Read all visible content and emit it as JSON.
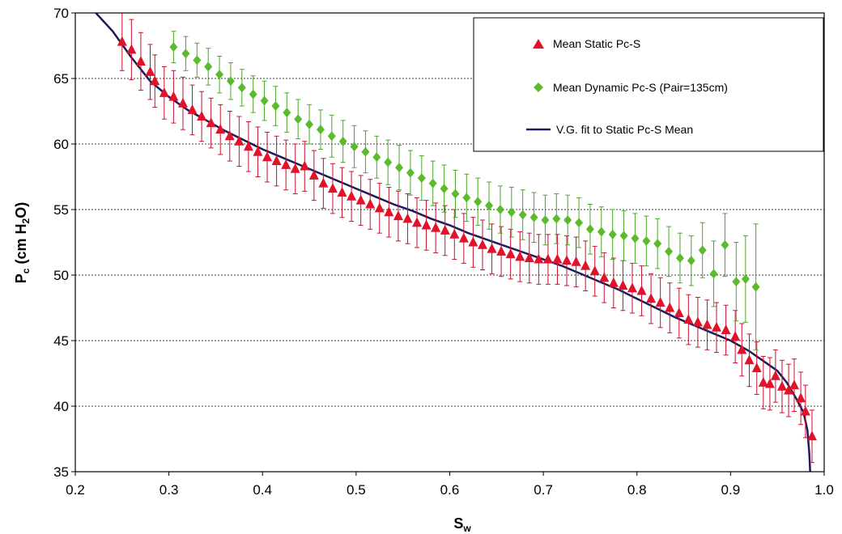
{
  "chart_data": {
    "type": "scatter",
    "title": "",
    "xlabel": {
      "main": "S",
      "sub": "w"
    },
    "ylabel": {
      "pre": "P",
      "sub": "c",
      "mid": " (cm H",
      "sub2": "2",
      "post": "O)"
    },
    "xlim": [
      0.2,
      1.0
    ],
    "ylim": [
      35,
      70
    ],
    "xticks": [
      0.2,
      0.3,
      0.4,
      0.5,
      0.6,
      0.7,
      0.8,
      0.9,
      1.0
    ],
    "xtick_labels": [
      "0.2",
      "0.3",
      "0.4",
      "0.5",
      "0.6",
      "0.7",
      "0.8",
      "0.9",
      "1.0"
    ],
    "yticks": [
      35,
      40,
      45,
      50,
      55,
      60,
      65,
      70
    ],
    "ytick_labels": [
      "35",
      "40",
      "45",
      "50",
      "55",
      "60",
      "65",
      "70"
    ],
    "grid": "horizontal",
    "legend_position": "top-right",
    "legend": [
      {
        "label": "Mean Static Pc-S",
        "marker": "triangle",
        "color": "#e3122b"
      },
      {
        "label": "Mean Dynamic Pc-S (Pair=135cm)",
        "marker": "diamond",
        "color": "#5cbb2d"
      },
      {
        "label": "V.G. fit to Static Pc-S Mean",
        "marker": "line",
        "color": "#1c1c5a"
      }
    ],
    "series": [
      {
        "name": "Mean Static Pc-S",
        "marker": "triangle",
        "color": "#e3122b",
        "error_color": "#c8102e",
        "points": [
          [
            0.25,
            67.8,
            2.2
          ],
          [
            0.26,
            67.2,
            2.3
          ],
          [
            0.27,
            66.3,
            2.2
          ],
          [
            0.28,
            65.5,
            2.1
          ],
          [
            0.285,
            64.8,
            2.0
          ],
          [
            0.295,
            63.9,
            2.0
          ],
          [
            0.305,
            63.6,
            2.0
          ],
          [
            0.315,
            63.1,
            2.0
          ],
          [
            0.325,
            62.6,
            1.9
          ],
          [
            0.335,
            62.1,
            1.9
          ],
          [
            0.345,
            61.6,
            1.9
          ],
          [
            0.355,
            61.1,
            1.9
          ],
          [
            0.365,
            60.6,
            1.9
          ],
          [
            0.375,
            60.2,
            1.9
          ],
          [
            0.385,
            59.8,
            1.9
          ],
          [
            0.395,
            59.4,
            1.9
          ],
          [
            0.405,
            59.0,
            1.9
          ],
          [
            0.415,
            58.7,
            1.9
          ],
          [
            0.425,
            58.4,
            1.9
          ],
          [
            0.435,
            58.1,
            1.9
          ],
          [
            0.445,
            58.3,
            1.9
          ],
          [
            0.455,
            57.6,
            1.9
          ],
          [
            0.465,
            57.0,
            1.9
          ],
          [
            0.475,
            56.6,
            1.9
          ],
          [
            0.485,
            56.3,
            1.9
          ],
          [
            0.495,
            56.0,
            1.9
          ],
          [
            0.505,
            55.7,
            1.9
          ],
          [
            0.515,
            55.4,
            1.9
          ],
          [
            0.525,
            55.1,
            1.9
          ],
          [
            0.535,
            54.8,
            1.9
          ],
          [
            0.545,
            54.5,
            1.9
          ],
          [
            0.555,
            54.3,
            1.9
          ],
          [
            0.565,
            54.0,
            1.9
          ],
          [
            0.575,
            53.8,
            1.9
          ],
          [
            0.585,
            53.6,
            1.9
          ],
          [
            0.595,
            53.4,
            1.9
          ],
          [
            0.605,
            53.1,
            1.9
          ],
          [
            0.615,
            52.8,
            1.9
          ],
          [
            0.625,
            52.5,
            1.9
          ],
          [
            0.635,
            52.3,
            1.9
          ],
          [
            0.645,
            52.0,
            1.9
          ],
          [
            0.655,
            51.8,
            1.9
          ],
          [
            0.665,
            51.6,
            1.9
          ],
          [
            0.675,
            51.4,
            1.9
          ],
          [
            0.685,
            51.3,
            1.9
          ],
          [
            0.695,
            51.2,
            1.9
          ],
          [
            0.705,
            51.2,
            1.9
          ],
          [
            0.715,
            51.2,
            1.9
          ],
          [
            0.725,
            51.1,
            1.9
          ],
          [
            0.735,
            51.0,
            1.9
          ],
          [
            0.745,
            50.7,
            1.9
          ],
          [
            0.755,
            50.3,
            1.9
          ],
          [
            0.765,
            49.8,
            1.9
          ],
          [
            0.775,
            49.4,
            1.9
          ],
          [
            0.785,
            49.2,
            1.9
          ],
          [
            0.795,
            49.0,
            1.9
          ],
          [
            0.805,
            48.8,
            1.9
          ],
          [
            0.815,
            48.2,
            1.9
          ],
          [
            0.825,
            47.9,
            1.9
          ],
          [
            0.835,
            47.5,
            1.9
          ],
          [
            0.845,
            47.1,
            1.9
          ],
          [
            0.855,
            46.6,
            1.9
          ],
          [
            0.865,
            46.4,
            1.9
          ],
          [
            0.875,
            46.2,
            1.9
          ],
          [
            0.885,
            46.0,
            1.9
          ],
          [
            0.895,
            45.8,
            1.9
          ],
          [
            0.905,
            45.3,
            2.0
          ],
          [
            0.912,
            44.3,
            2.0
          ],
          [
            0.92,
            43.5,
            2.0
          ],
          [
            0.928,
            42.9,
            2.0
          ],
          [
            0.935,
            41.8,
            2.0
          ],
          [
            0.942,
            41.7,
            2.0
          ],
          [
            0.948,
            42.3,
            2.0
          ],
          [
            0.955,
            41.5,
            2.0
          ],
          [
            0.962,
            41.2,
            2.0
          ],
          [
            0.968,
            41.6,
            2.0
          ],
          [
            0.975,
            40.6,
            2.0
          ],
          [
            0.98,
            39.6,
            2.0
          ],
          [
            0.987,
            37.7,
            2.0
          ]
        ]
      },
      {
        "name": "Mean Dynamic Pc-S (Pair=135cm)",
        "marker": "diamond",
        "color": "#5cbb2d",
        "error_color": "#4aa826",
        "points": [
          [
            0.305,
            67.4,
            1.2
          ],
          [
            0.318,
            66.9,
            1.3
          ],
          [
            0.33,
            66.4,
            1.3
          ],
          [
            0.342,
            65.9,
            1.4
          ],
          [
            0.354,
            65.3,
            1.4
          ],
          [
            0.366,
            64.8,
            1.4
          ],
          [
            0.378,
            64.3,
            1.4
          ],
          [
            0.39,
            63.8,
            1.4
          ],
          [
            0.402,
            63.3,
            1.5
          ],
          [
            0.414,
            62.9,
            1.5
          ],
          [
            0.426,
            62.4,
            1.5
          ],
          [
            0.438,
            61.9,
            1.5
          ],
          [
            0.45,
            61.5,
            1.5
          ],
          [
            0.462,
            61.1,
            1.5
          ],
          [
            0.474,
            60.6,
            1.6
          ],
          [
            0.486,
            60.2,
            1.6
          ],
          [
            0.498,
            59.8,
            1.6
          ],
          [
            0.51,
            59.4,
            1.6
          ],
          [
            0.522,
            59.0,
            1.6
          ],
          [
            0.534,
            58.6,
            1.7
          ],
          [
            0.546,
            58.2,
            1.7
          ],
          [
            0.558,
            57.8,
            1.7
          ],
          [
            0.57,
            57.4,
            1.7
          ],
          [
            0.582,
            57.0,
            1.7
          ],
          [
            0.594,
            56.6,
            1.8
          ],
          [
            0.606,
            56.2,
            1.8
          ],
          [
            0.618,
            55.9,
            1.8
          ],
          [
            0.63,
            55.6,
            1.8
          ],
          [
            0.642,
            55.3,
            1.8
          ],
          [
            0.654,
            55.0,
            1.8
          ],
          [
            0.666,
            54.8,
            1.9
          ],
          [
            0.678,
            54.6,
            1.9
          ],
          [
            0.69,
            54.4,
            1.9
          ],
          [
            0.702,
            54.2,
            1.9
          ],
          [
            0.714,
            54.3,
            1.9
          ],
          [
            0.726,
            54.2,
            1.9
          ],
          [
            0.738,
            54.0,
            1.9
          ],
          [
            0.75,
            53.5,
            1.9
          ],
          [
            0.762,
            53.3,
            1.9
          ],
          [
            0.774,
            53.1,
            1.9
          ],
          [
            0.786,
            53.0,
            1.9
          ],
          [
            0.798,
            52.8,
            1.9
          ],
          [
            0.81,
            52.6,
            1.9
          ],
          [
            0.822,
            52.4,
            1.9
          ],
          [
            0.834,
            51.8,
            1.9
          ],
          [
            0.846,
            51.3,
            1.9
          ],
          [
            0.858,
            51.1,
            1.9
          ],
          [
            0.87,
            51.9,
            2.1
          ],
          [
            0.882,
            50.1,
            2.5
          ],
          [
            0.894,
            52.3,
            2.4
          ],
          [
            0.906,
            49.5,
            3.0
          ],
          [
            0.916,
            49.7,
            3.3
          ],
          [
            0.927,
            49.1,
            4.8
          ]
        ]
      },
      {
        "name": "V.G. fit to Static Pc-S Mean",
        "marker": "line",
        "color": "#1c1c5a",
        "points": [
          [
            0.222,
            70.0
          ],
          [
            0.24,
            68.6
          ],
          [
            0.26,
            66.6
          ],
          [
            0.28,
            64.8
          ],
          [
            0.3,
            63.6
          ],
          [
            0.32,
            62.6
          ],
          [
            0.34,
            61.8
          ],
          [
            0.36,
            61.0
          ],
          [
            0.38,
            60.3
          ],
          [
            0.4,
            59.6
          ],
          [
            0.42,
            59.0
          ],
          [
            0.44,
            58.4
          ],
          [
            0.46,
            57.8
          ],
          [
            0.48,
            57.2
          ],
          [
            0.5,
            56.6
          ],
          [
            0.52,
            56.0
          ],
          [
            0.54,
            55.4
          ],
          [
            0.56,
            54.9
          ],
          [
            0.58,
            54.3
          ],
          [
            0.6,
            53.8
          ],
          [
            0.62,
            53.2
          ],
          [
            0.64,
            52.7
          ],
          [
            0.66,
            52.2
          ],
          [
            0.68,
            51.7
          ],
          [
            0.7,
            51.2
          ],
          [
            0.72,
            50.7
          ],
          [
            0.74,
            50.1
          ],
          [
            0.76,
            49.5
          ],
          [
            0.78,
            48.9
          ],
          [
            0.8,
            48.2
          ],
          [
            0.82,
            47.5
          ],
          [
            0.84,
            46.8
          ],
          [
            0.86,
            46.2
          ],
          [
            0.88,
            45.6
          ],
          [
            0.9,
            45.0
          ],
          [
            0.92,
            44.2
          ],
          [
            0.94,
            43.2
          ],
          [
            0.95,
            42.7
          ],
          [
            0.96,
            41.8
          ],
          [
            0.97,
            40.6
          ],
          [
            0.978,
            39.5
          ],
          [
            0.982,
            38.2
          ],
          [
            0.984,
            36.5
          ],
          [
            0.985,
            35.0
          ]
        ]
      }
    ]
  }
}
